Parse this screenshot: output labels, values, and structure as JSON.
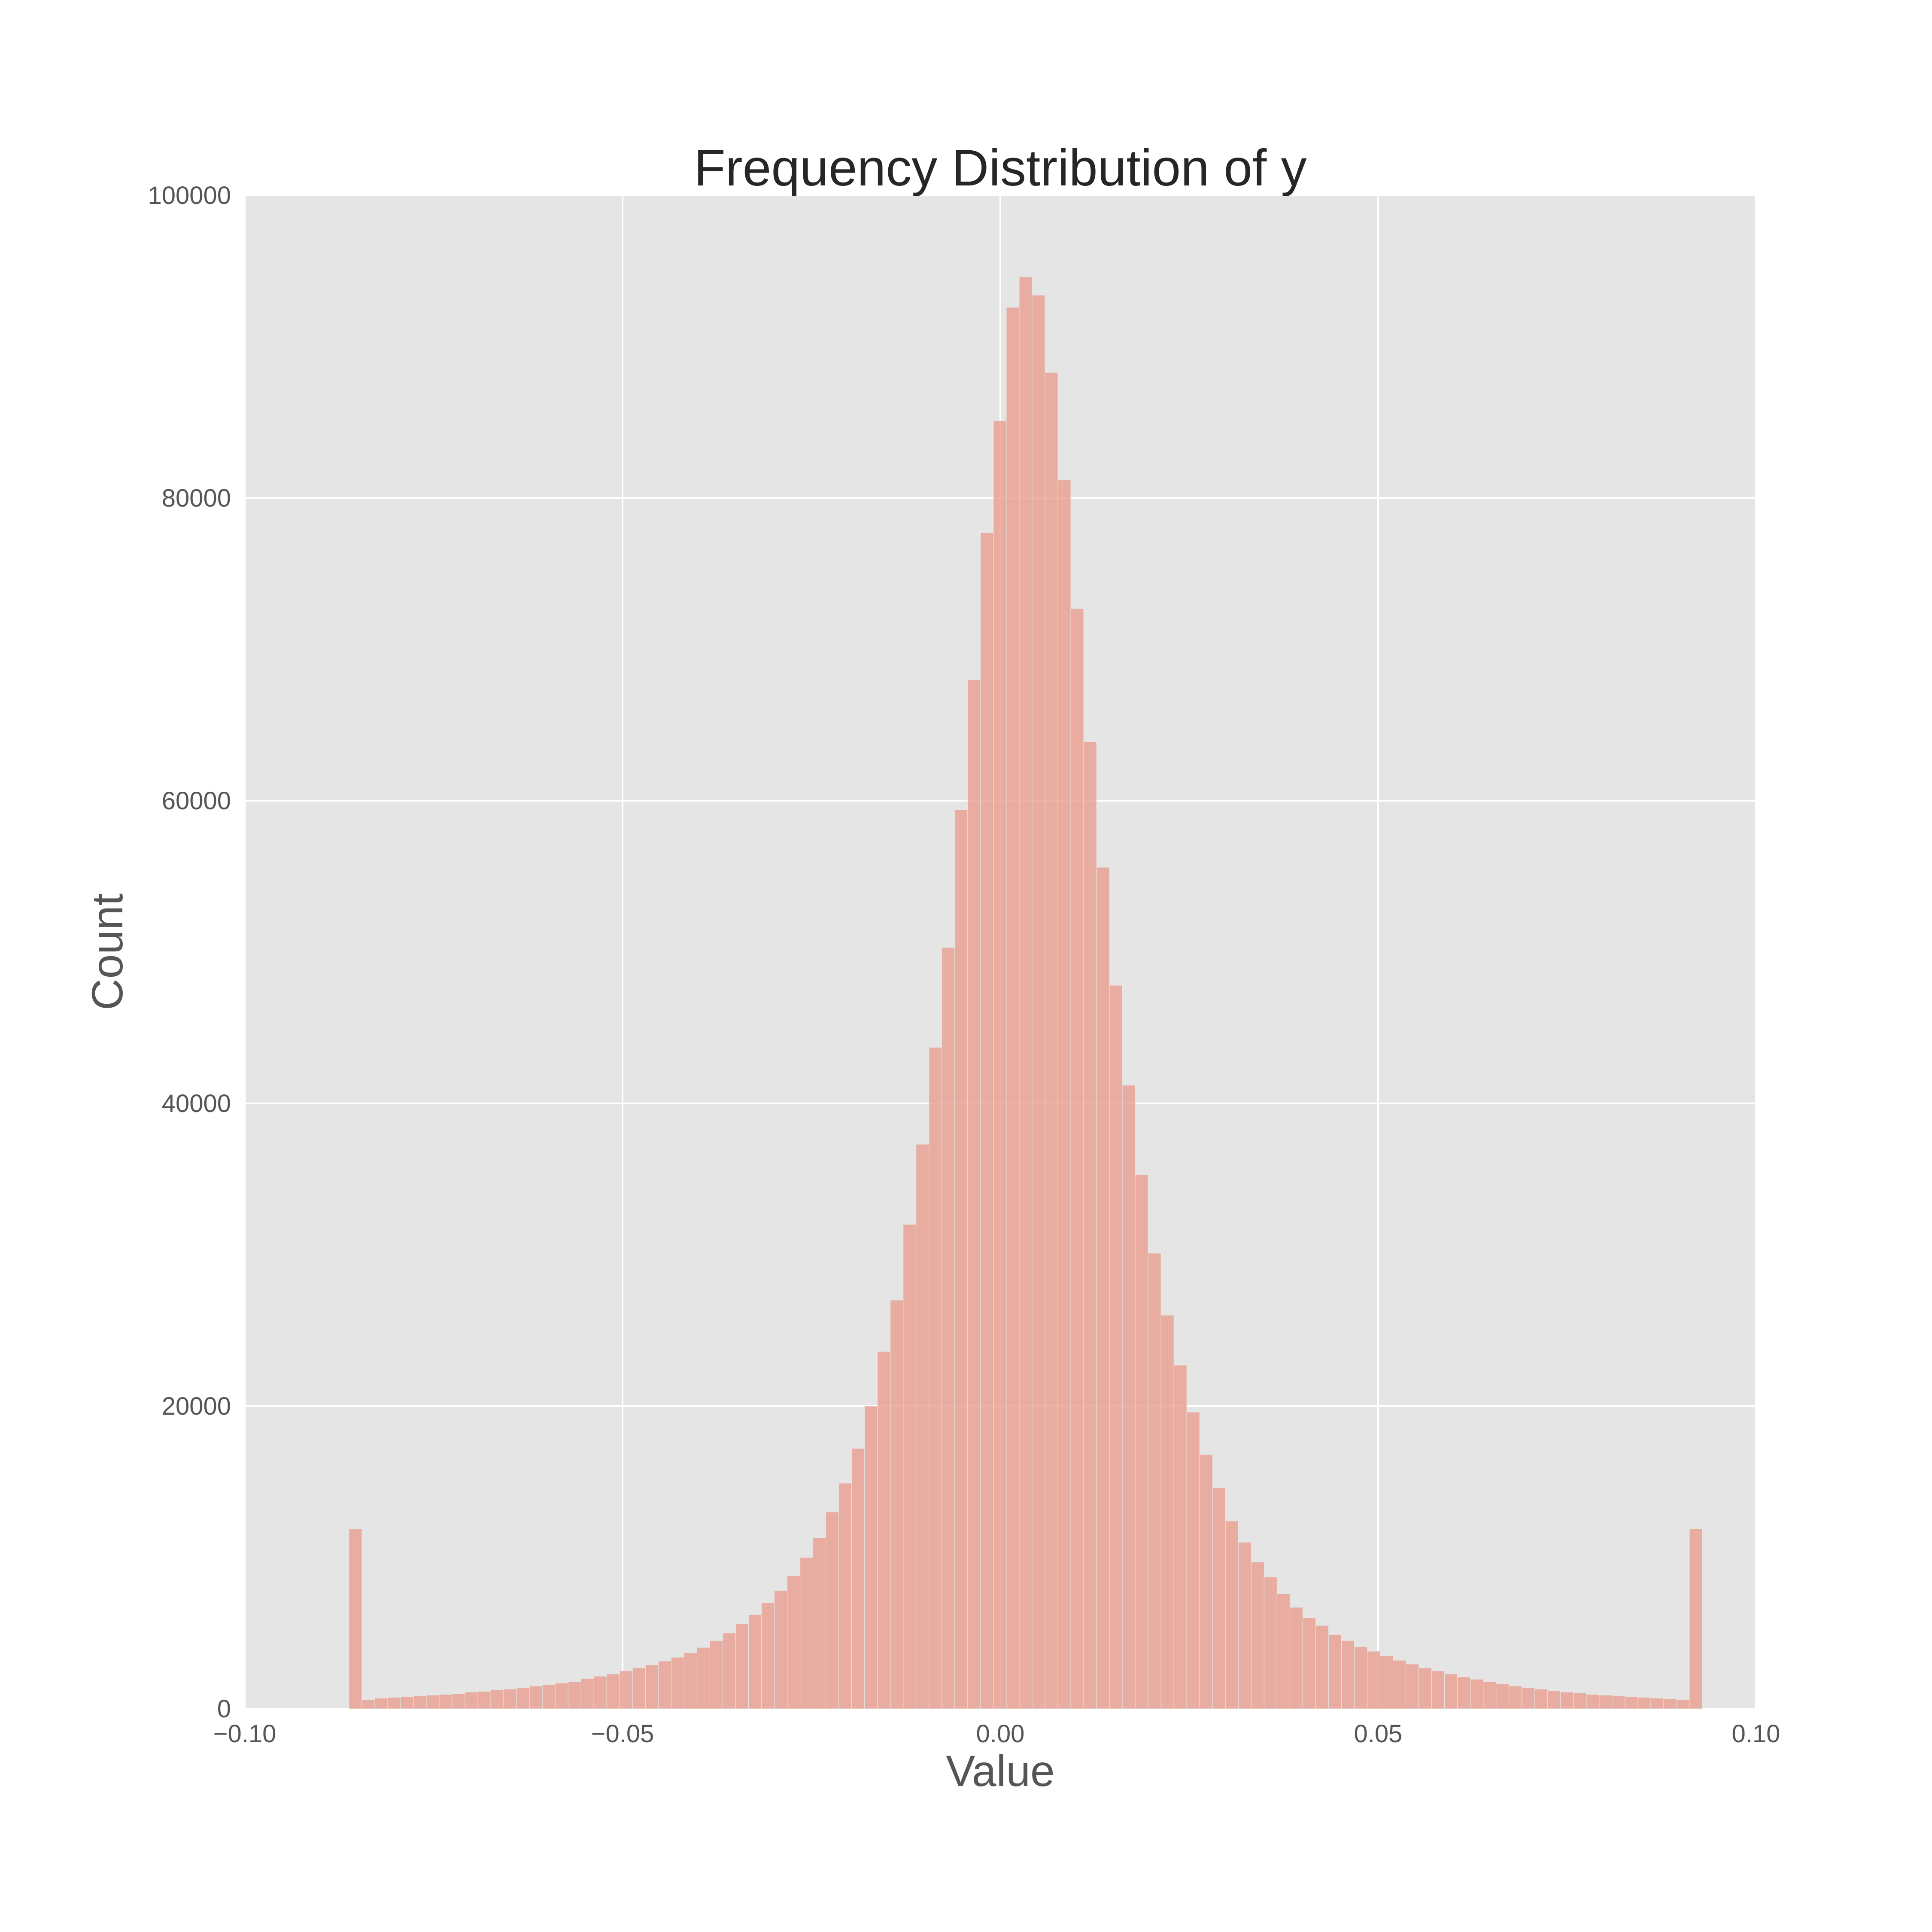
{
  "chart_data": {
    "type": "bar",
    "title": "Frequency Distribution of y",
    "xlabel": "Value",
    "ylabel": "Count",
    "xlim": [
      -0.1,
      0.1
    ],
    "ylim": [
      0,
      100000
    ],
    "xticks": [
      -0.1,
      -0.05,
      0.0,
      0.05,
      0.1
    ],
    "xtick_labels": [
      "−0.10",
      "−0.05",
      "0.00",
      "0.05",
      "0.10"
    ],
    "yticks": [
      0,
      20000,
      40000,
      60000,
      80000,
      100000
    ],
    "ytick_labels": [
      "0",
      "20000",
      "40000",
      "60000",
      "80000",
      "100000"
    ],
    "grid": true,
    "bar_color": "#e8a090",
    "background_color": "#e5e5e5",
    "bin_start": -0.0862,
    "bin_end": 0.0929,
    "values": [
      11900,
      600,
      700,
      750,
      800,
      850,
      900,
      950,
      1000,
      1100,
      1150,
      1250,
      1300,
      1400,
      1500,
      1600,
      1700,
      1800,
      2000,
      2150,
      2300,
      2500,
      2700,
      2900,
      3150,
      3400,
      3700,
      4050,
      4500,
      5000,
      5600,
      6200,
      7000,
      7800,
      8800,
      10000,
      11300,
      13000,
      14900,
      17200,
      20000,
      23600,
      27000,
      32000,
      37300,
      43700,
      50300,
      59400,
      68000,
      77700,
      85100,
      92600,
      94600,
      93400,
      88300,
      81200,
      72700,
      63900,
      55600,
      47800,
      41200,
      35300,
      30100,
      26000,
      22700,
      19600,
      16800,
      14600,
      12400,
      11000,
      9700,
      8700,
      7600,
      6700,
      6000,
      5500,
      4900,
      4500,
      4100,
      3800,
      3500,
      3200,
      2950,
      2700,
      2500,
      2300,
      2100,
      1950,
      1800,
      1650,
      1500,
      1400,
      1300,
      1200,
      1100,
      1050,
      950,
      900,
      850,
      800,
      750,
      700,
      650,
      600,
      11900
    ]
  }
}
